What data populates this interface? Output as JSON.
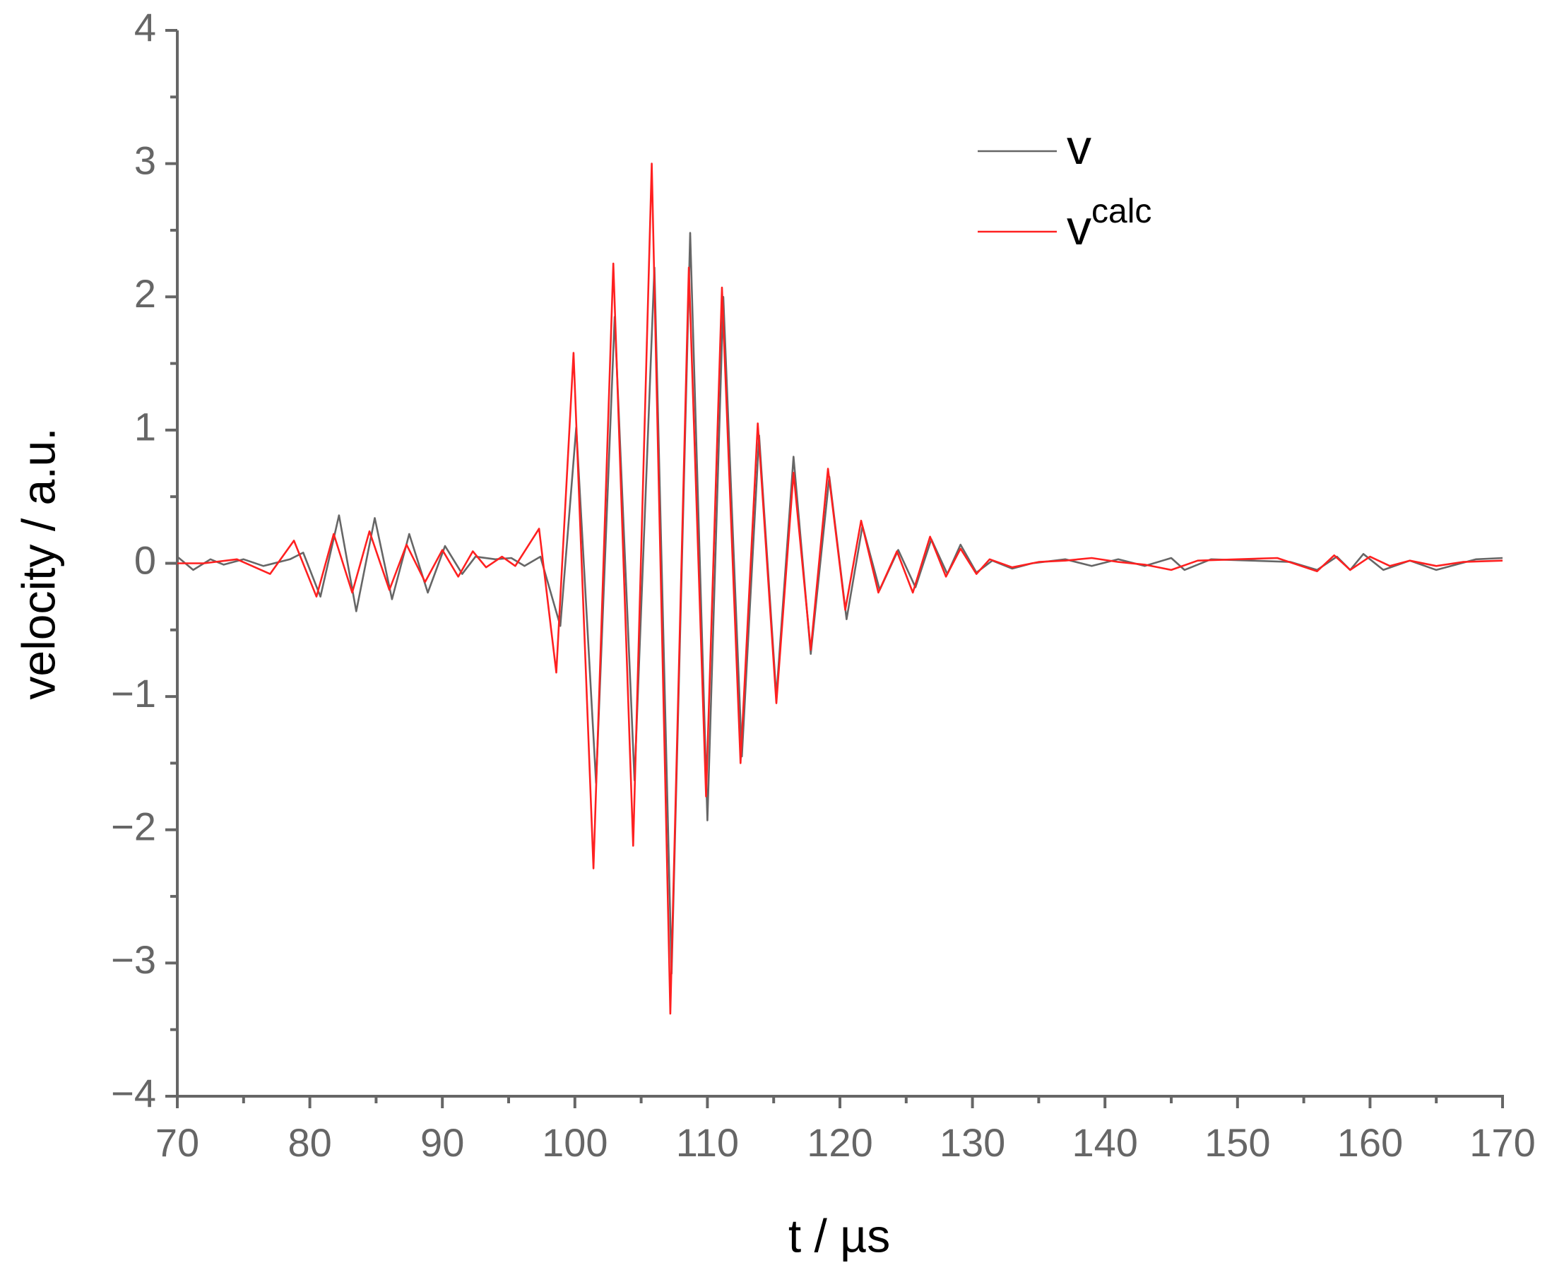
{
  "chart_data": {
    "type": "line",
    "x_label": "t / µs",
    "y_label": "velocity / a.u.",
    "xlim": [
      70,
      170
    ],
    "ylim": [
      -4,
      4
    ],
    "xticks": [
      70,
      80,
      90,
      100,
      110,
      120,
      130,
      140,
      150,
      160,
      170
    ],
    "yticks": [
      {
        "value": -4,
        "label": "−4"
      },
      {
        "value": -3,
        "label": "−3"
      },
      {
        "value": -2,
        "label": "−2"
      },
      {
        "value": -1,
        "label": "−1"
      },
      0,
      1,
      2,
      3,
      4
    ],
    "xminorticks": [
      75,
      85,
      95,
      105,
      115,
      125,
      135,
      145,
      155,
      165
    ],
    "yminorticks": [
      -3.5,
      -2.5,
      -1.5,
      -0.5,
      0.5,
      1.5,
      2.5,
      3.5
    ],
    "legend": "upper right",
    "series": [
      {
        "name": "v",
        "color": "#666666",
        "x": [
          70,
          71.2,
          72.5,
          73.5,
          75,
          76.5,
          78.5,
          79.5,
          80.8,
          82.2,
          83.5,
          84.9,
          86.2,
          87.5,
          88.9,
          90.2,
          91.5,
          92.5,
          94,
          95.2,
          96.2,
          97.4,
          98.9,
          100.1,
          101.6,
          103.0,
          104.5,
          106.0,
          107.3,
          108.7,
          110.0,
          111.2,
          112.6,
          113.9,
          115.2,
          116.5,
          117.8,
          119.2,
          120.5,
          121.7,
          123.0,
          124.4,
          125.7,
          126.9,
          128.1,
          129.1,
          130.3,
          131.5,
          133,
          134.5,
          137,
          139,
          141,
          143,
          145,
          146,
          148,
          151,
          154,
          156,
          157.5,
          158.5,
          159.5,
          161,
          163,
          165,
          168,
          170
        ],
        "values": [
          0.05,
          -0.05,
          0.03,
          -0.01,
          0.03,
          -0.02,
          0.03,
          0.08,
          -0.25,
          0.36,
          -0.36,
          0.34,
          -0.27,
          0.22,
          -0.22,
          0.13,
          -0.08,
          0.05,
          0.03,
          0.04,
          -0.02,
          0.05,
          -0.47,
          1.02,
          -1.65,
          1.85,
          -1.63,
          2.22,
          -3.08,
          2.48,
          -1.93,
          2.0,
          -1.45,
          0.96,
          -1.0,
          0.8,
          -0.68,
          0.65,
          -0.42,
          0.28,
          -0.2,
          0.1,
          -0.18,
          0.18,
          -0.08,
          0.14,
          -0.07,
          0.02,
          -0.04,
          0.0,
          0.03,
          -0.02,
          0.03,
          -0.02,
          0.04,
          -0.05,
          0.03,
          0.02,
          0.01,
          -0.05,
          0.05,
          -0.05,
          0.07,
          -0.05,
          0.02,
          -0.05,
          0.03,
          0.04
        ]
      },
      {
        "name": "v",
        "superscript": "calc",
        "color": "#ff2020",
        "x": [
          70,
          72,
          74.5,
          77,
          78.8,
          80.5,
          81.8,
          83.2,
          84.5,
          86,
          87.3,
          88.7,
          90,
          91.2,
          92.3,
          93.3,
          94.5,
          95.5,
          97.3,
          98.6,
          99.9,
          101.4,
          102.9,
          104.4,
          105.8,
          107.2,
          108.6,
          109.9,
          111.1,
          112.5,
          113.8,
          115.2,
          116.5,
          117.8,
          119.1,
          120.4,
          121.6,
          122.9,
          124.3,
          125.5,
          126.8,
          128,
          129.1,
          130.3,
          131.3,
          133,
          135,
          137,
          139,
          141,
          143,
          145,
          147,
          150,
          153,
          156,
          157.3,
          158.5,
          160,
          161.5,
          163,
          165,
          167,
          170
        ],
        "values": [
          0,
          0,
          0.03,
          -0.08,
          0.17,
          -0.25,
          0.22,
          -0.22,
          0.24,
          -0.2,
          0.14,
          -0.14,
          0.1,
          -0.1,
          0.09,
          -0.03,
          0.05,
          -0.02,
          0.26,
          -0.82,
          1.58,
          -2.29,
          2.25,
          -2.12,
          3.0,
          -3.38,
          2.22,
          -1.75,
          2.07,
          -1.5,
          1.05,
          -1.05,
          0.68,
          -0.65,
          0.71,
          -0.35,
          0.32,
          -0.22,
          0.09,
          -0.22,
          0.2,
          -0.1,
          0.11,
          -0.08,
          0.03,
          -0.03,
          0.01,
          0.02,
          0.04,
          0.01,
          -0.01,
          -0.05,
          0.02,
          0.03,
          0.04,
          -0.06,
          0.06,
          -0.05,
          0.05,
          -0.02,
          0.02,
          -0.02,
          0.01,
          0.02
        ]
      }
    ]
  }
}
